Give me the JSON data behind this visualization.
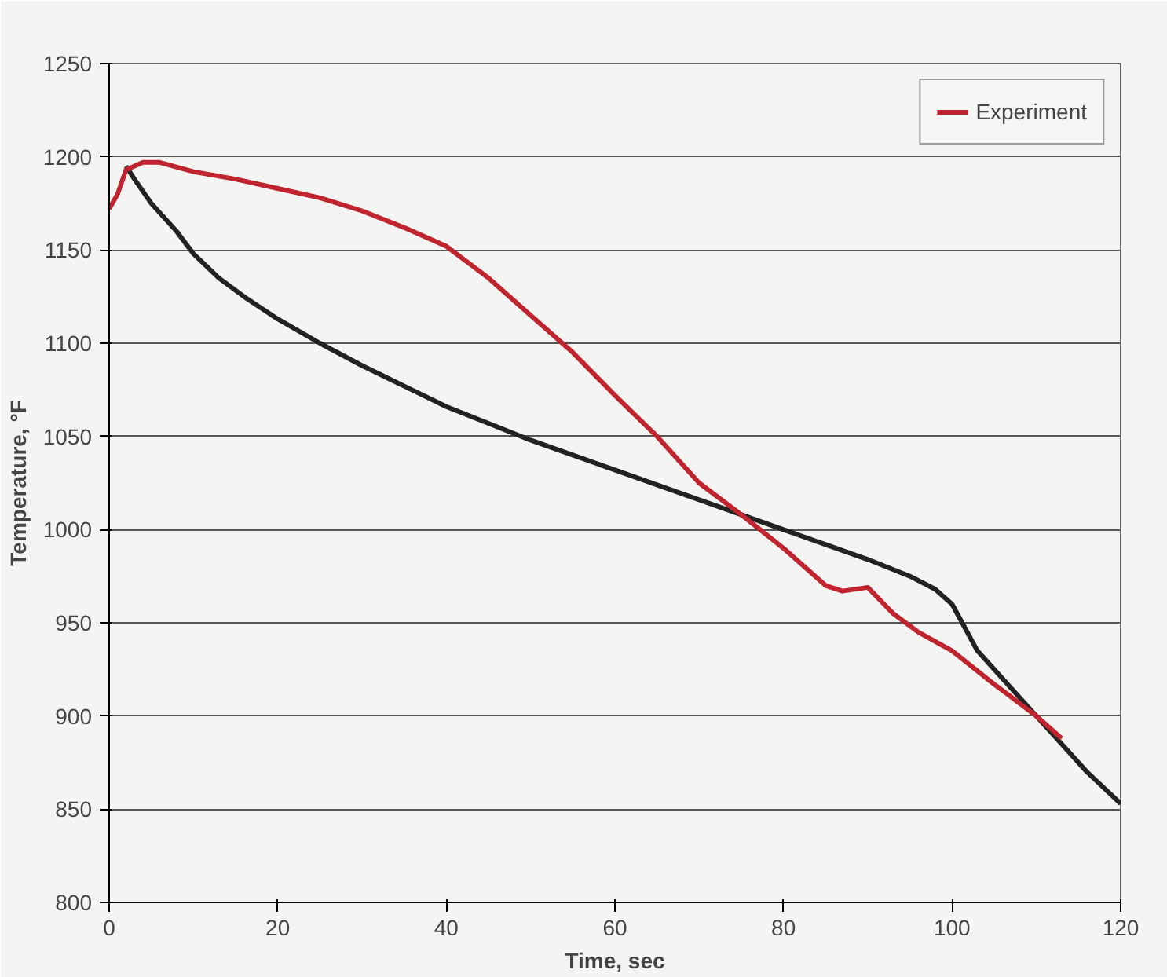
{
  "chart_data": {
    "type": "line",
    "xlabel": "Time, sec",
    "ylabel": "Temperature, °F",
    "xlim": [
      0,
      120
    ],
    "xticks": [
      0,
      20,
      40,
      60,
      80,
      100,
      120
    ],
    "ylim": [
      800,
      1250
    ],
    "yticks": [
      800,
      850,
      900,
      950,
      1000,
      1050,
      1100,
      1150,
      1200,
      1250
    ],
    "grid": "y",
    "legend": "top right",
    "series": [
      {
        "color": "#222222",
        "x": [
          2,
          3,
          5,
          8,
          10,
          13,
          16,
          20,
          25,
          30,
          35,
          40,
          45,
          50,
          55,
          60,
          65,
          70,
          75,
          80,
          85,
          90,
          95,
          98,
          100,
          103,
          106,
          110,
          113,
          116,
          120
        ],
        "values": [
          1195,
          1188,
          1175,
          1160,
          1148,
          1135,
          1125,
          1113,
          1100,
          1088,
          1077,
          1066,
          1057,
          1048,
          1040,
          1032,
          1024,
          1016,
          1008,
          1000,
          992,
          984,
          975,
          968,
          960,
          935,
          920,
          900,
          885,
          870,
          853
        ]
      },
      {
        "name": "Experiment",
        "color": "#c0242e",
        "x": [
          0,
          1,
          2,
          4,
          6,
          10,
          15,
          20,
          25,
          30,
          35,
          40,
          45,
          50,
          55,
          60,
          65,
          70,
          75,
          80,
          85,
          87,
          90,
          93,
          96,
          100,
          105,
          110,
          113
        ],
        "values": [
          1172,
          1180,
          1193,
          1197,
          1197,
          1192,
          1188,
          1183,
          1178,
          1171,
          1162,
          1152,
          1135,
          1115,
          1095,
          1072,
          1050,
          1025,
          1008,
          990,
          970,
          967,
          969,
          955,
          945,
          935,
          917,
          900,
          888
        ]
      }
    ]
  }
}
